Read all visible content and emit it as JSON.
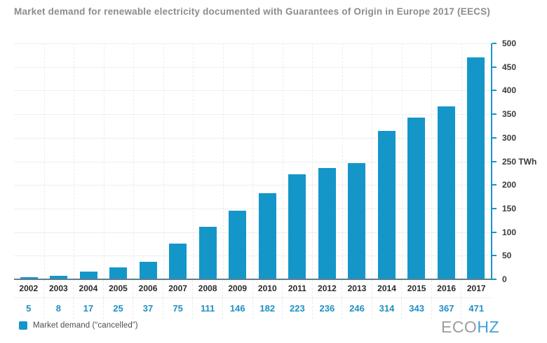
{
  "title": "Market demand for renewable electricity documented with Guarantees of Origin in Europe 2017 (EECS)",
  "chart_data": {
    "type": "bar",
    "title": "Market demand for renewable electricity documented with Guarantees of Origin in Europe 2017 (EECS)",
    "categories": [
      "2002",
      "2003",
      "2004",
      "2005",
      "2006",
      "2007",
      "2008",
      "2009",
      "2010",
      "2011",
      "2012",
      "2013",
      "2014",
      "2015",
      "2016",
      "2017"
    ],
    "values": [
      5,
      8,
      17,
      25,
      37,
      75,
      111,
      146,
      182,
      223,
      236,
      246,
      314,
      343,
      367,
      471
    ],
    "series_name": "Market demand (“cancelled”)",
    "xlabel": "",
    "ylabel": "TWh",
    "ylim": [
      0,
      500
    ],
    "ytick_step": 50,
    "ytick_labels": [
      "0",
      "50",
      "100",
      "150",
      "200",
      "250 TWh",
      "300",
      "350",
      "400",
      "450",
      "500"
    ],
    "yaxis_position": "right",
    "grid": true,
    "data_labels_shown_below_axis": true,
    "legend_position": "bottom-left",
    "bar_color": "#1596c9",
    "axis_color": "#1596c9",
    "xaxis_line_color": "#5d7f91",
    "value_label_color": "#1e8fc4"
  },
  "legend": {
    "label": "Market demand (“cancelled”)",
    "marker_color": "#1596c9"
  },
  "logo": {
    "part1": "ECO",
    "part2": "HZ"
  }
}
